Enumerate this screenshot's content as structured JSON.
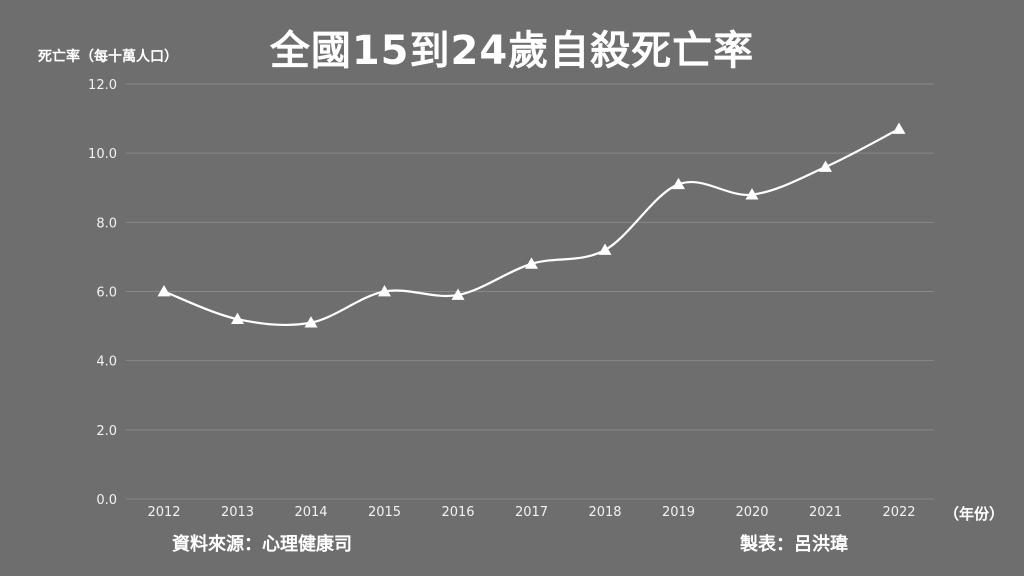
{
  "chart_data": {
    "type": "line",
    "title": "全國15到24歲自殺死亡率",
    "ylabel": "死亡率（每十萬人口）",
    "xlabel": "（年份）",
    "categories": [
      "2012",
      "2013",
      "2014",
      "2015",
      "2016",
      "2017",
      "2018",
      "2019",
      "2020",
      "2021",
      "2022"
    ],
    "series": [
      {
        "values": [
          6.0,
          5.2,
          5.1,
          6.0,
          5.9,
          6.8,
          7.2,
          9.1,
          8.8,
          9.6,
          10.7
        ]
      }
    ],
    "ylim": [
      0,
      12
    ],
    "yticks": [
      "0.0",
      "2.0",
      "4.0",
      "6.0",
      "8.0",
      "10.0",
      "12.0"
    ],
    "grid": true,
    "marker": "triangle",
    "line_color": "#ffffff",
    "background_color": "#6e6e6e"
  },
  "footer": {
    "source": "資料來源：心理健康司",
    "credit": "製表：呂洪瑋"
  }
}
